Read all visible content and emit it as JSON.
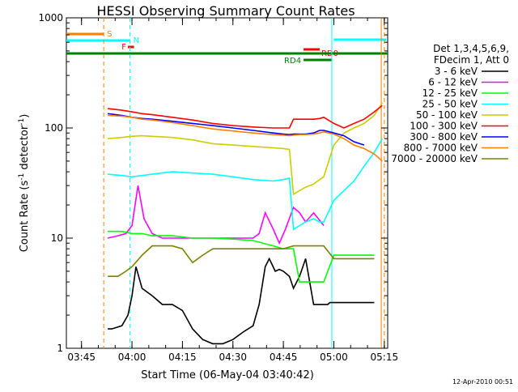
{
  "chart_data": {
    "type": "line",
    "title": "HESSI Observing Summary Count Rates",
    "xlabel": "Start Time (06-May-04 03:40:42)",
    "ylabel_main": "Count Rate (s",
    "ylabel_sup1": "-1",
    "ylabel_mid": " detector",
    "ylabel_sup2": "-1",
    "ylabel_end": ")",
    "yscale": "log",
    "ylim": [
      1,
      1000
    ],
    "xlim": [
      3.675,
      5.2667
    ],
    "y_ticks": [
      {
        "value": 1,
        "label": "1"
      },
      {
        "value": 10,
        "label": "10"
      },
      {
        "value": 100,
        "label": "100"
      },
      {
        "value": 1000,
        "label": "1000"
      }
    ],
    "x_ticks": [
      {
        "value": 3.75,
        "label": "03:45"
      },
      {
        "value": 4.0,
        "label": "04:00"
      },
      {
        "value": 4.25,
        "label": "04:15"
      },
      {
        "value": 4.5,
        "label": "04:30"
      },
      {
        "value": 4.75,
        "label": "04:45"
      },
      {
        "value": 5.0,
        "label": "05:00"
      },
      {
        "value": 5.25,
        "label": "05:15"
      }
    ],
    "legend_header": [
      "Det 1,3,4,5,6,9,",
      "FDecim 1, Att 0"
    ],
    "legend_position": "right",
    "series": [
      {
        "name": "3 - 6 keV",
        "color": "#000000",
        "x": [
          3.88,
          3.9,
          3.95,
          3.98,
          4.0,
          4.02,
          4.05,
          4.1,
          4.15,
          4.2,
          4.25,
          4.3,
          4.35,
          4.4,
          4.45,
          4.5,
          4.55,
          4.6,
          4.63,
          4.66,
          4.68,
          4.71,
          4.73,
          4.75,
          4.78,
          4.8,
          4.83,
          4.86,
          4.9,
          4.95,
          4.96,
          4.97,
          4.98,
          5.0,
          5.05,
          5.1,
          5.15,
          5.2
        ],
        "y": [
          1.5,
          1.5,
          1.6,
          2.0,
          3.0,
          5.5,
          3.5,
          3.0,
          2.5,
          2.5,
          2.2,
          1.5,
          1.2,
          1.1,
          1.1,
          1.2,
          1.4,
          1.6,
          2.5,
          5.5,
          6.5,
          5.0,
          5.2,
          5.0,
          4.5,
          3.5,
          4.5,
          6.5,
          2.5,
          2.5,
          2.5,
          2.5,
          2.6,
          2.6,
          2.6,
          2.6,
          2.6,
          2.6
        ]
      },
      {
        "name": "6 - 12 keV",
        "color": "#ff00ff",
        "x": [
          3.88,
          3.93,
          3.97,
          4.0,
          4.03,
          4.06,
          4.1,
          4.15,
          4.2,
          4.25,
          4.3,
          4.35,
          4.4,
          4.45,
          4.5,
          4.55,
          4.6,
          4.63,
          4.66,
          4.7,
          4.73,
          4.76,
          4.8,
          4.83,
          4.86,
          4.9,
          4.95
        ],
        "y": [
          10,
          10.5,
          11,
          13,
          30,
          15,
          11,
          10,
          10,
          10,
          10,
          10,
          10,
          10,
          10,
          10,
          10,
          11,
          17,
          12,
          9,
          12,
          19,
          17,
          14,
          17,
          13
        ]
      },
      {
        "name": "12 - 25 keV",
        "color": "#00ff00",
        "x": [
          3.88,
          3.95,
          4.0,
          4.05,
          4.1,
          4.2,
          4.3,
          4.4,
          4.5,
          4.6,
          4.7,
          4.75,
          4.8,
          4.83,
          4.86,
          4.9,
          4.95,
          5.0,
          5.05,
          5.1,
          5.15,
          5.2
        ],
        "y": [
          11.5,
          11.5,
          11,
          11,
          10.5,
          10.5,
          10,
          10,
          9.8,
          9.5,
          8.5,
          8,
          8,
          4,
          4,
          4,
          4,
          7,
          7,
          7,
          7,
          7
        ]
      },
      {
        "name": "25 - 50 keV",
        "color": "#00ffff",
        "x": [
          3.88,
          3.95,
          4.0,
          4.05,
          4.1,
          4.2,
          4.3,
          4.4,
          4.5,
          4.6,
          4.7,
          4.75,
          4.78,
          4.8,
          4.83,
          4.86,
          4.9,
          4.93,
          4.95,
          5.0,
          5.05,
          5.1,
          5.15,
          5.2,
          5.24
        ],
        "y": [
          38,
          37,
          36,
          37,
          38,
          40,
          39,
          38,
          36,
          34,
          33,
          34,
          35,
          12,
          13,
          14,
          15,
          14,
          14,
          22,
          27,
          33,
          45,
          60,
          80
        ]
      },
      {
        "name": "50 - 100 keV",
        "color": "#cccc00",
        "x": [
          3.88,
          3.95,
          4.0,
          4.05,
          4.1,
          4.2,
          4.3,
          4.4,
          4.5,
          4.6,
          4.7,
          4.75,
          4.78,
          4.8,
          4.83,
          4.86,
          4.9,
          4.93,
          4.95,
          5.0,
          5.05,
          5.1,
          5.15,
          5.2,
          5.24
        ],
        "y": [
          80,
          82,
          84,
          85,
          84,
          82,
          78,
          72,
          70,
          68,
          66,
          65,
          64,
          25,
          27,
          29,
          31,
          34,
          36,
          70,
          90,
          100,
          110,
          130,
          170
        ]
      },
      {
        "name": "100 - 300 keV",
        "color": "#ff0000",
        "x": [
          3.88,
          3.95,
          4.0,
          4.05,
          4.1,
          4.2,
          4.3,
          4.4,
          4.5,
          4.6,
          4.7,
          4.75,
          4.78,
          4.8,
          4.83,
          4.86,
          4.9,
          4.93,
          4.95,
          5.0,
          5.05,
          5.1,
          5.15,
          5.2,
          5.24
        ],
        "y": [
          150,
          145,
          140,
          135,
          132,
          125,
          118,
          110,
          105,
          102,
          100,
          100,
          100,
          120,
          120,
          120,
          120,
          122,
          125,
          110,
          100,
          110,
          120,
          140,
          160
        ]
      },
      {
        "name": "300 - 800 keV",
        "color": "#0000ff",
        "x": [
          3.88,
          3.95,
          4.0,
          4.05,
          4.1,
          4.2,
          4.3,
          4.4,
          4.5,
          4.6,
          4.7,
          4.75,
          4.78,
          4.8,
          4.83,
          4.86,
          4.9,
          4.93,
          4.95,
          5.0,
          5.05,
          5.1,
          5.15
        ],
        "y": [
          135,
          130,
          125,
          122,
          120,
          115,
          110,
          105,
          100,
          95,
          90,
          88,
          87,
          88,
          88,
          88,
          90,
          95,
          95,
          90,
          85,
          75,
          70
        ]
      },
      {
        "name": "800 - 7000 keV",
        "color": "#ff7f00",
        "x": [
          3.88,
          3.95,
          4.0,
          4.05,
          4.1,
          4.2,
          4.3,
          4.4,
          4.5,
          4.6,
          4.7,
          4.75,
          4.78,
          4.8,
          4.83,
          4.86,
          4.9,
          4.93,
          4.95,
          5.0,
          5.05,
          5.1,
          5.15,
          5.2,
          5.24
        ],
        "y": [
          130,
          128,
          125,
          120,
          118,
          112,
          105,
          98,
          94,
          90,
          87,
          86,
          85,
          86,
          87,
          87,
          88,
          90,
          92,
          88,
          80,
          70,
          65,
          58,
          50
        ]
      },
      {
        "name": "7000 - 20000 keV",
        "color": "#808000",
        "x": [
          3.88,
          3.93,
          3.97,
          4.0,
          4.05,
          4.1,
          4.15,
          4.2,
          4.25,
          4.3,
          4.35,
          4.4,
          4.45,
          4.5,
          4.55,
          4.6,
          4.65,
          4.7,
          4.75,
          4.8,
          4.83,
          4.86,
          4.9,
          4.95,
          5.0,
          5.05,
          5.1,
          5.15,
          5.2
        ],
        "y": [
          4.5,
          4.5,
          5,
          5.5,
          7,
          8.5,
          8.5,
          8.5,
          8,
          6,
          7,
          8,
          8,
          8,
          8,
          8,
          8,
          8,
          8,
          8.5,
          8.5,
          8.5,
          8.5,
          8.5,
          6.5,
          6.5,
          6.5,
          6.5,
          6.5
        ]
      }
    ],
    "flags": [
      {
        "label": "S",
        "color": "#ff7f00",
        "x0": 3.675,
        "x1": 3.86
      },
      {
        "label": "N",
        "color": "#00ffff",
        "x0": 3.675,
        "x1": 3.99
      },
      {
        "label": "F",
        "color": "#ff0000",
        "x0": 3.98,
        "x1": 4.01
      },
      {
        "label": "RD0",
        "color": "#ff0000",
        "x0": 4.85,
        "x1": 4.93
      },
      {
        "label": "RD4",
        "color": "#008000",
        "x0": 4.85,
        "x1": 4.99
      },
      {
        "label": "",
        "color": "#00ffff",
        "x0": 5.0,
        "x1": 5.26
      },
      {
        "label": "",
        "color": "#008000",
        "x0": 3.675,
        "x1": 5.2667
      }
    ],
    "vlines": [
      {
        "x": 3.86,
        "color": "#ff7f00",
        "style": "dashed"
      },
      {
        "x": 3.99,
        "color": "#00ffff",
        "style": "dashed"
      },
      {
        "x": 4.99,
        "color": "#00ffff",
        "style": "solid"
      },
      {
        "x": 5.235,
        "color": "#ff7f00",
        "style": "solid"
      },
      {
        "x": 5.25,
        "color": "#ff7f00",
        "style": "dashed"
      }
    ],
    "timestamp": "12-Apr-2010 00:51"
  }
}
